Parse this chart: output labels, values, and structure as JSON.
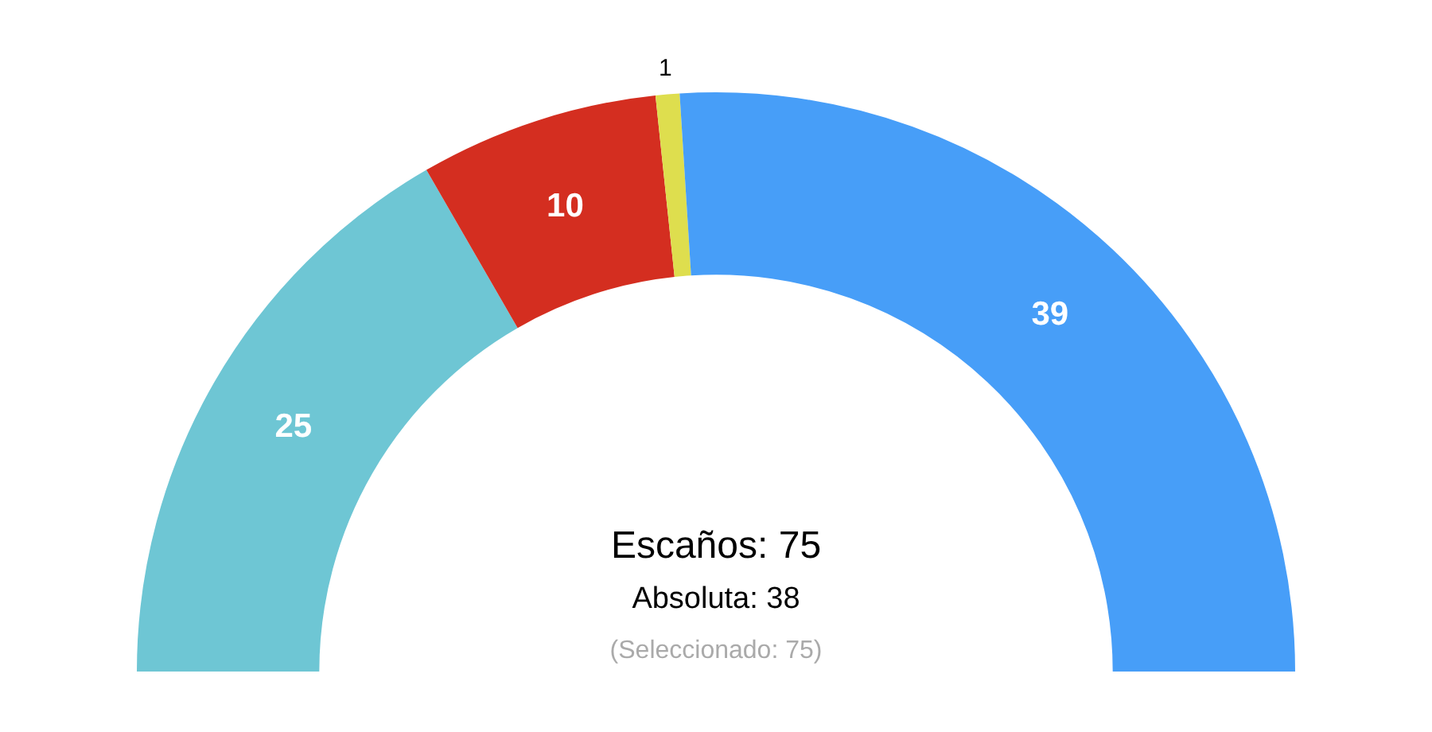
{
  "chart_data": {
    "type": "donut",
    "categories": [
      null,
      null,
      null,
      null
    ],
    "values": [
      25,
      10,
      1,
      39
    ],
    "colors": [
      "#6ec6d4",
      "#d42e20",
      "#dede4e",
      "#479ef8"
    ],
    "data_labels": true,
    "legend": false,
    "annotations": [
      "Escaños: 75",
      "Absoluta: 38",
      "(Seleccionado: 75)"
    ]
  }
}
